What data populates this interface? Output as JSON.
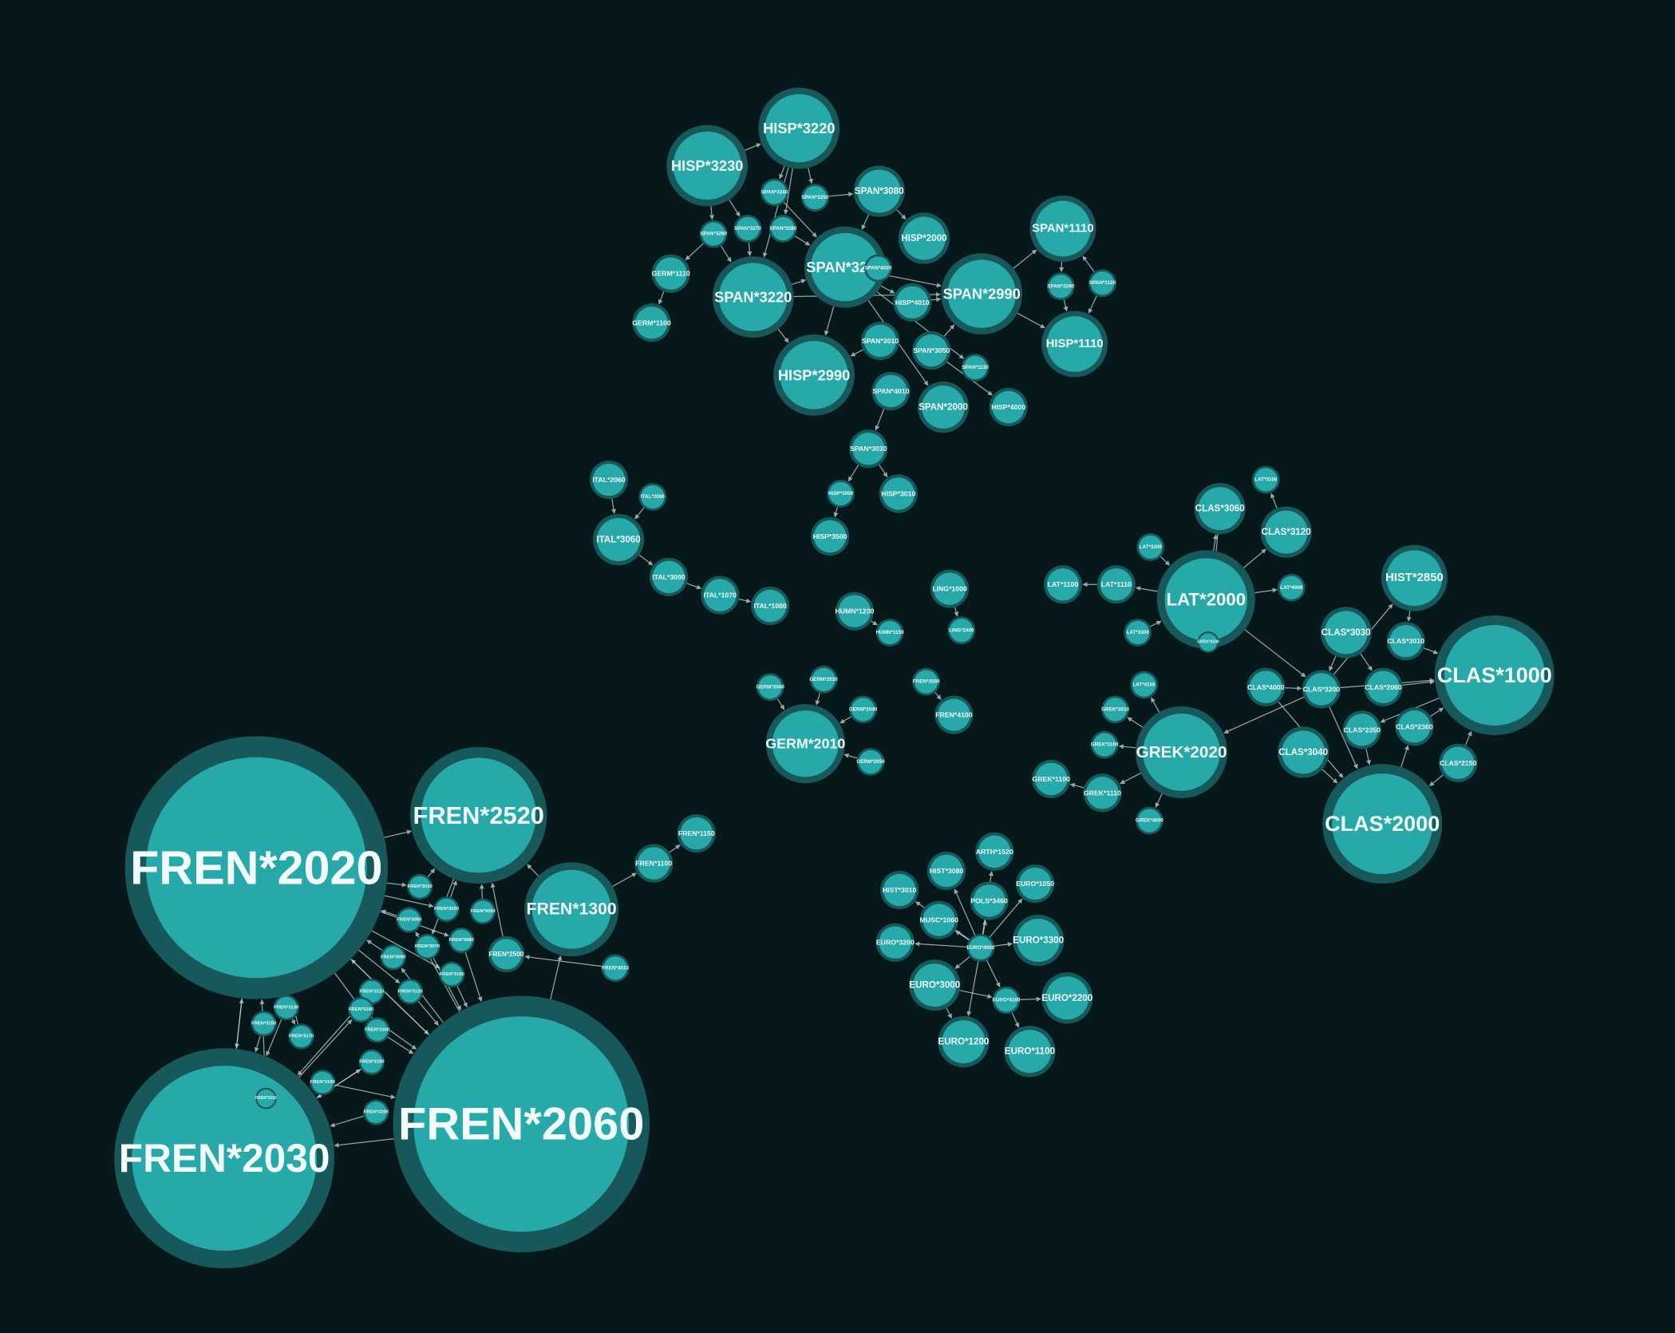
{
  "graph": {
    "background": "#06181a",
    "node_fill": "#26a9a8",
    "node_ring": "#17585a",
    "edge_color": "#c9dcdc",
    "nodes": [
      {
        "id": "FREN*2020",
        "label": "FREN*2020"
      },
      {
        "id": "FREN*2060",
        "label": "FREN*2060"
      },
      {
        "id": "FREN*2030",
        "label": "FREN*2030"
      },
      {
        "id": "FREN*2520",
        "label": "FREN*2520"
      },
      {
        "id": "FREN*1300",
        "label": "FREN*1300"
      },
      {
        "id": "FREN*1150",
        "label": "FREN*1150"
      },
      {
        "id": "FREN*1100",
        "label": "FREN*1100"
      },
      {
        "id": "FREN*2500",
        "label": "FREN*2500"
      },
      {
        "id": "FREN*4010",
        "label": "FREN*4010"
      },
      {
        "id": "f1",
        "label": "FREN*3010"
      },
      {
        "id": "f2",
        "label": "FREN*3020"
      },
      {
        "id": "f3",
        "label": "FREN*3050"
      },
      {
        "id": "f4",
        "label": "FREN*3060"
      },
      {
        "id": "f5",
        "label": "FREN*3070"
      },
      {
        "id": "f6",
        "label": "FREN*3080"
      },
      {
        "id": "f7",
        "label": "FREN*3090"
      },
      {
        "id": "f8",
        "label": "FREN*3100"
      },
      {
        "id": "f9",
        "label": "FREN*3110"
      },
      {
        "id": "f10",
        "label": "FREN*3120"
      },
      {
        "id": "f11",
        "label": "FREN*3130"
      },
      {
        "id": "f12",
        "label": "FREN*3140"
      },
      {
        "id": "f13",
        "label": "FREN*3150"
      },
      {
        "id": "f14",
        "label": "FREN*3160"
      },
      {
        "id": "f15",
        "label": "FREN*3170"
      },
      {
        "id": "f16",
        "label": "FREN*3180"
      },
      {
        "id": "f17",
        "label": "FREN*3190"
      },
      {
        "id": "f18",
        "label": "FREN*3200"
      },
      {
        "id": "f19",
        "label": "FREN*3210"
      },
      {
        "id": "HISP*3220",
        "label": "HISP*3220"
      },
      {
        "id": "HISP*3230",
        "label": "HISP*3230"
      },
      {
        "id": "SPAN*3230",
        "label": "SPAN*3230"
      },
      {
        "id": "SPAN*3220",
        "label": "SPAN*3220"
      },
      {
        "id": "SPAN*2990",
        "label": "SPAN*2990"
      },
      {
        "id": "HISP*2990",
        "label": "HISP*2990"
      },
      {
        "id": "SPAN*1110",
        "label": "SPAN*1110"
      },
      {
        "id": "HISP*1110",
        "label": "HISP*1110"
      },
      {
        "id": "SPAN*3080",
        "label": "SPAN*3080"
      },
      {
        "id": "HISP*2000",
        "label": "HISP*2000"
      },
      {
        "id": "SPAN*2000",
        "label": "SPAN*2000"
      },
      {
        "id": "SPAN*3030",
        "label": "SPAN*3030"
      },
      {
        "id": "HISP*3010",
        "label": "HISP*3010"
      },
      {
        "id": "SPAN*3010",
        "label": "SPAN*3010"
      },
      {
        "id": "SPAN*4010",
        "label": "SPAN*4010"
      },
      {
        "id": "SPAN*3050",
        "label": "SPAN*3050"
      },
      {
        "id": "HISP*4000",
        "label": "HISP*4000"
      },
      {
        "id": "HISP*4010",
        "label": "HISP*4010"
      },
      {
        "id": "HISP*3500",
        "label": "HISP*3500"
      },
      {
        "id": "GERM*1110",
        "label": "GERM*1110"
      },
      {
        "id": "GERM*1100",
        "label": "GERM*1100"
      },
      {
        "id": "HISP*3000",
        "label": "HISP*3000"
      },
      {
        "id": "s1",
        "label": "SPAN*3240"
      },
      {
        "id": "s2",
        "label": "SPAN*3250"
      },
      {
        "id": "s3",
        "label": "SPAN*3260"
      },
      {
        "id": "s4",
        "label": "SPAN*3270"
      },
      {
        "id": "s5",
        "label": "SPAN*3280"
      },
      {
        "id": "s6",
        "label": "SPAN*3290"
      },
      {
        "id": "s7",
        "label": "SPAN*1120"
      },
      {
        "id": "s8",
        "label": "SPAN*1130"
      },
      {
        "id": "s9",
        "label": "SPAN*4020"
      },
      {
        "id": "ITAL*2060",
        "label": "ITAL*2060"
      },
      {
        "id": "ITAL*2090",
        "label": "ITAL*2090"
      },
      {
        "id": "ITAL*3060",
        "label": "ITAL*3060"
      },
      {
        "id": "ITAL*3090",
        "label": "ITAL*3090"
      },
      {
        "id": "ITAL*1070",
        "label": "ITAL*1070"
      },
      {
        "id": "ITAL*1060",
        "label": "ITAL*1060"
      },
      {
        "id": "HUMN*1200",
        "label": "HUMN*1200"
      },
      {
        "id": "HUMN*1150",
        "label": "HUMN*1150"
      },
      {
        "id": "LING*1000",
        "label": "LING*1000"
      },
      {
        "id": "LING*2400",
        "label": "LING*2400"
      },
      {
        "id": "GERM*2010",
        "label": "GERM*2010"
      },
      {
        "id": "GERM*2000",
        "label": "GERM*2000"
      },
      {
        "id": "GERM*2020",
        "label": "GERM*2020"
      },
      {
        "id": "GERM*2040",
        "label": "GERM*2040"
      },
      {
        "id": "GERM*2050",
        "label": "GERM*2050"
      },
      {
        "id": "FREN*3500",
        "label": "FREN*3500"
      },
      {
        "id": "FREN*4100",
        "label": "FREN*4100"
      },
      {
        "id": "LAT*2000",
        "label": "LAT*2000"
      },
      {
        "id": "CLAS*3060",
        "label": "CLAS*3060"
      },
      {
        "id": "CLAS*3120",
        "label": "CLAS*3120"
      },
      {
        "id": "LAT*3100",
        "label": "LAT*3100"
      },
      {
        "id": "HIST*2850",
        "label": "HIST*2850"
      },
      {
        "id": "CLAS*1000",
        "label": "CLAS*1000"
      },
      {
        "id": "CLAS*2000",
        "label": "CLAS*2000"
      },
      {
        "id": "GREK*2020",
        "label": "GREK*2020"
      },
      {
        "id": "LAT*1100",
        "label": "LAT*1100"
      },
      {
        "id": "LAT*1110",
        "label": "LAT*1110"
      },
      {
        "id": "CLAS*3030",
        "label": "CLAS*3030"
      },
      {
        "id": "CLAS*4000",
        "label": "CLAS*4000"
      },
      {
        "id": "CLAS*3200",
        "label": "CLAS*3200"
      },
      {
        "id": "CLAS*2060",
        "label": "CLAS*2060"
      },
      {
        "id": "CLAS*3010",
        "label": "CLAS*3010"
      },
      {
        "id": "CLAS*2350",
        "label": "CLAS*2350"
      },
      {
        "id": "CLAS*2360",
        "label": "CLAS*2360"
      },
      {
        "id": "CLAS*3040",
        "label": "CLAS*3040"
      },
      {
        "id": "CLAS*2150",
        "label": "CLAS*2150"
      },
      {
        "id": "GREK*1100",
        "label": "GREK*1100"
      },
      {
        "id": "GREK*1110",
        "label": "GREK*1110"
      },
      {
        "id": "c1",
        "label": "LAT*3200"
      },
      {
        "id": "c2",
        "label": "LAT*3300"
      },
      {
        "id": "c3",
        "label": "LAT*4000"
      },
      {
        "id": "c4",
        "label": "LAT*4100"
      },
      {
        "id": "c5",
        "label": "GREK*3010"
      },
      {
        "id": "c6",
        "label": "GREK*3100"
      },
      {
        "id": "c7",
        "label": "GREK*4000"
      },
      {
        "id": "c8",
        "label": "GREK*4100"
      },
      {
        "id": "ARTH*1520",
        "label": "ARTH*1520"
      },
      {
        "id": "HIST*3080",
        "label": "HIST*3080"
      },
      {
        "id": "EURO*1050",
        "label": "EURO*1050"
      },
      {
        "id": "HIST*3010",
        "label": "HIST*3010"
      },
      {
        "id": "POLS*3460",
        "label": "POLS*3460"
      },
      {
        "id": "MUSC*1060",
        "label": "MUSC*1060"
      },
      {
        "id": "EURO*3300",
        "label": "EURO*3300"
      },
      {
        "id": "EURO*3200",
        "label": "EURO*3200"
      },
      {
        "id": "EURO*3000",
        "label": "EURO*3000"
      },
      {
        "id": "EURO*2200",
        "label": "EURO*2200"
      },
      {
        "id": "EURO*1200",
        "label": "EURO*1200"
      },
      {
        "id": "EURO*1100",
        "label": "EURO*1100"
      },
      {
        "id": "e1",
        "label": "EURO*4000"
      },
      {
        "id": "e2",
        "label": "EURO*4100"
      }
    ]
  }
}
